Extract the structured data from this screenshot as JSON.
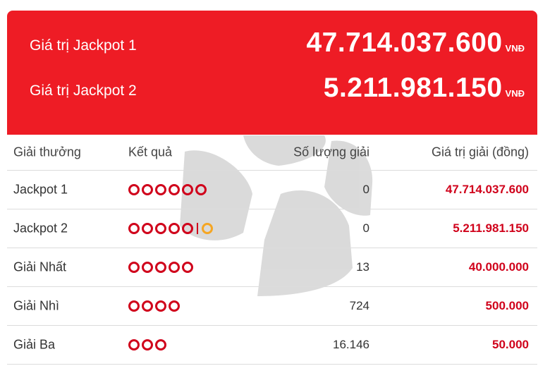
{
  "jackpots": [
    {
      "label": "Giá trị Jackpot 1",
      "value": "47.714.037.600",
      "unit": "VNĐ"
    },
    {
      "label": "Giá trị Jackpot 2",
      "value": "5.211.981.150",
      "unit": "VNĐ"
    }
  ],
  "table": {
    "headers": {
      "prize": "Giải thưởng",
      "result": "Kết quả",
      "count": "Số lượng giải",
      "value": "Giá trị giải (đồng)"
    },
    "rows": [
      {
        "prize": "Jackpot 1",
        "balls": 6,
        "bonus": false,
        "count": "0",
        "value": "47.714.037.600"
      },
      {
        "prize": "Jackpot 2",
        "balls": 5,
        "bonus": true,
        "count": "0",
        "value": "5.211.981.150"
      },
      {
        "prize": "Giải Nhất",
        "balls": 5,
        "bonus": false,
        "count": "13",
        "value": "40.000.000"
      },
      {
        "prize": "Giải Nhì",
        "balls": 4,
        "bonus": false,
        "count": "724",
        "value": "500.000"
      },
      {
        "prize": "Giải Ba",
        "balls": 3,
        "bonus": false,
        "count": "16.146",
        "value": "50.000"
      }
    ]
  },
  "colors": {
    "panel_red": "#ee1c25",
    "ball_red": "#d0021b",
    "ball_gold": "#f5a623"
  }
}
